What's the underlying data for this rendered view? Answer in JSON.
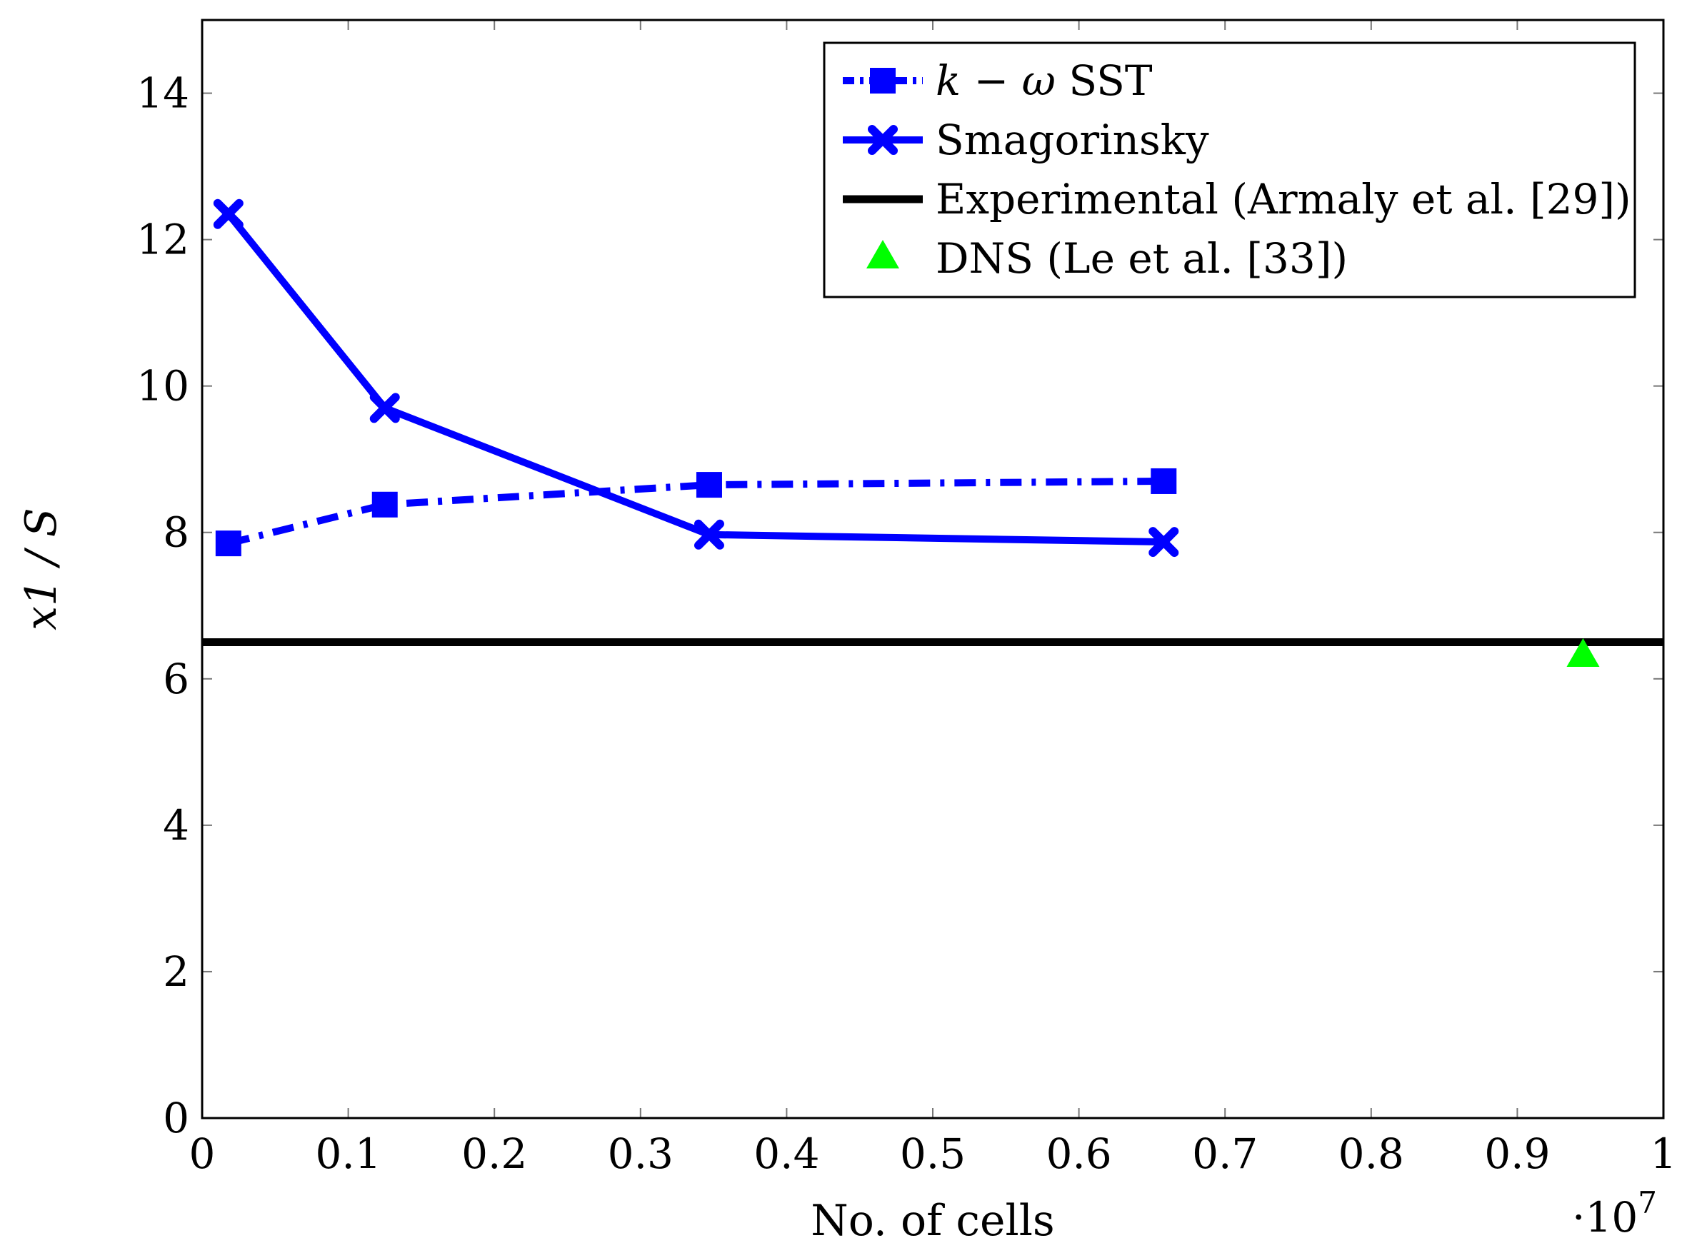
{
  "chart_data": {
    "type": "line",
    "title": "",
    "xlabel": "No. of cells",
    "ylabel": "x1 / S",
    "x_scale_label": "·10",
    "x_scale_exponent": "7",
    "xlim": [
      0,
      1
    ],
    "ylim": [
      0,
      15
    ],
    "xticks": [
      0,
      0.1,
      0.2,
      0.3,
      0.4,
      0.5,
      0.6,
      0.7,
      0.8,
      0.9,
      1
    ],
    "xtick_labels": [
      "0",
      "0.1",
      "0.2",
      "0.3",
      "0.4",
      "0.5",
      "0.6",
      "0.7",
      "0.8",
      "0.9",
      "1"
    ],
    "yticks": [
      0,
      2,
      4,
      6,
      8,
      10,
      12,
      14
    ],
    "ytick_labels": [
      "0",
      "2",
      "4",
      "6",
      "8",
      "10",
      "12",
      "14"
    ],
    "legend_position": "top-right",
    "series": [
      {
        "name": "k − ω SST",
        "style": "dashdot",
        "marker": "square",
        "color": "#0000ff",
        "x": [
          0.018,
          0.125,
          0.347,
          0.658
        ],
        "values": [
          7.85,
          8.38,
          8.65,
          8.7
        ]
      },
      {
        "name": "Smagorinsky",
        "style": "solid",
        "marker": "x",
        "color": "#0000ff",
        "x": [
          0.018,
          0.125,
          0.347,
          0.658
        ],
        "values": [
          12.35,
          9.7,
          7.97,
          7.87
        ]
      },
      {
        "name": "Experimental (Armaly et al. [29])",
        "style": "solid",
        "marker": "none",
        "color": "#000000",
        "x": [
          0,
          1
        ],
        "values": [
          6.5,
          6.5
        ]
      },
      {
        "name": "DNS (Le et al. [33])",
        "style": "none",
        "marker": "triangle",
        "color": "#00ff00",
        "x": [
          0.945
        ],
        "values": [
          6.3
        ]
      }
    ]
  }
}
